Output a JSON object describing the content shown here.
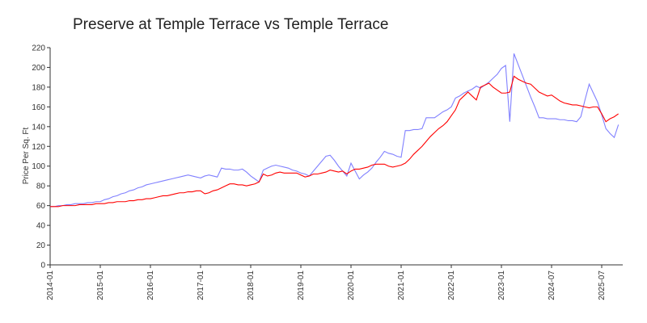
{
  "chart_data": {
    "type": "line",
    "title": "Preserve at Temple Terrace vs Temple Terrace",
    "y_label": "Price Per Sq. Ft",
    "categories": [
      "2014-01",
      null,
      null,
      null,
      null,
      null,
      null,
      null,
      null,
      null,
      null,
      null,
      "2015-01",
      null,
      null,
      null,
      null,
      null,
      null,
      null,
      null,
      null,
      null,
      null,
      "2016-01",
      null,
      null,
      null,
      null,
      null,
      null,
      null,
      null,
      null,
      null,
      null,
      "2017-01",
      null,
      null,
      null,
      null,
      null,
      null,
      null,
      null,
      null,
      null,
      null,
      "2018-01",
      null,
      null,
      null,
      null,
      null,
      null,
      null,
      null,
      null,
      null,
      null,
      "2019-01",
      null,
      null,
      null,
      null,
      null,
      null,
      null,
      null,
      null,
      null,
      null,
      "2020-01",
      null,
      null,
      null,
      null,
      null,
      null,
      null,
      null,
      null,
      null,
      null,
      "2021-01",
      null,
      null,
      null,
      null,
      null,
      null,
      null,
      null,
      null,
      null,
      null,
      "2022-01",
      null,
      null,
      null,
      null,
      null,
      null,
      null,
      null,
      null,
      null,
      null,
      "2023-01",
      null,
      null,
      null,
      null,
      null,
      null,
      null,
      null,
      null,
      null,
      null,
      "2024-07",
      null,
      null,
      null,
      null,
      null,
      null,
      null,
      null,
      null,
      null,
      null,
      "2025-07",
      null,
      null,
      null,
      null
    ],
    "series": [
      {
        "color": "#8080ff",
        "values": [
          59,
          59,
          60,
          60,
          61,
          61,
          62,
          62,
          62,
          63,
          63,
          64,
          64,
          66,
          67,
          69,
          70,
          72,
          73,
          75,
          76,
          78,
          79,
          81,
          82,
          83,
          84,
          85,
          86,
          87,
          88,
          89,
          90,
          91,
          90,
          89,
          88,
          90,
          91,
          90,
          89,
          98,
          97,
          97,
          96,
          96,
          97,
          94,
          90,
          87,
          84,
          96,
          98,
          100,
          101,
          100,
          99,
          98,
          96,
          95,
          93,
          92,
          90,
          95,
          100,
          105,
          110,
          111,
          106,
          100,
          95,
          90,
          103,
          95,
          87,
          91,
          94,
          98,
          104,
          109,
          115,
          113,
          112,
          110,
          109,
          136,
          136,
          137,
          137,
          138,
          149,
          149,
          149,
          152,
          155,
          157,
          160,
          169,
          171,
          174,
          176,
          178,
          181,
          179,
          182,
          185,
          189,
          193,
          199,
          202,
          145,
          214,
          203,
          192,
          181,
          170,
          160,
          149,
          149,
          148,
          148,
          148,
          147,
          147,
          146,
          146,
          145,
          150,
          167,
          183,
          174,
          165,
          152,
          138,
          133,
          129,
          142
        ]
      },
      {
        "color": "#ff0000",
        "values": [
          59,
          59,
          59,
          60,
          60,
          60,
          60,
          61,
          61,
          61,
          61,
          62,
          62,
          62,
          63,
          63,
          64,
          64,
          64,
          65,
          65,
          66,
          66,
          67,
          67,
          68,
          69,
          70,
          70,
          71,
          72,
          73,
          73,
          74,
          74,
          75,
          75,
          72,
          73,
          75,
          76,
          78,
          80,
          82,
          82,
          81,
          81,
          80,
          81,
          82,
          84,
          92,
          90,
          91,
          93,
          94,
          93,
          93,
          93,
          93,
          91,
          89,
          90,
          92,
          92,
          93,
          94,
          96,
          95,
          94,
          95,
          92,
          95,
          97,
          97,
          98,
          99,
          101,
          102,
          102,
          102,
          100,
          99,
          100,
          101,
          103,
          107,
          112,
          116,
          120,
          125,
          130,
          134,
          138,
          141,
          145,
          151,
          157,
          167,
          171,
          175,
          171,
          167,
          180,
          182,
          184,
          180,
          177,
          174,
          174,
          175,
          191,
          188,
          186,
          184,
          183,
          179,
          175,
          173,
          171,
          172,
          169,
          166,
          164,
          163,
          162,
          162,
          161,
          160,
          159,
          160,
          160,
          153,
          145,
          148,
          150,
          153
        ]
      }
    ],
    "ylim": [
      0,
      220
    ],
    "yticks": [
      0,
      20,
      40,
      60,
      80,
      100,
      120,
      140,
      160,
      180,
      200,
      220
    ]
  }
}
